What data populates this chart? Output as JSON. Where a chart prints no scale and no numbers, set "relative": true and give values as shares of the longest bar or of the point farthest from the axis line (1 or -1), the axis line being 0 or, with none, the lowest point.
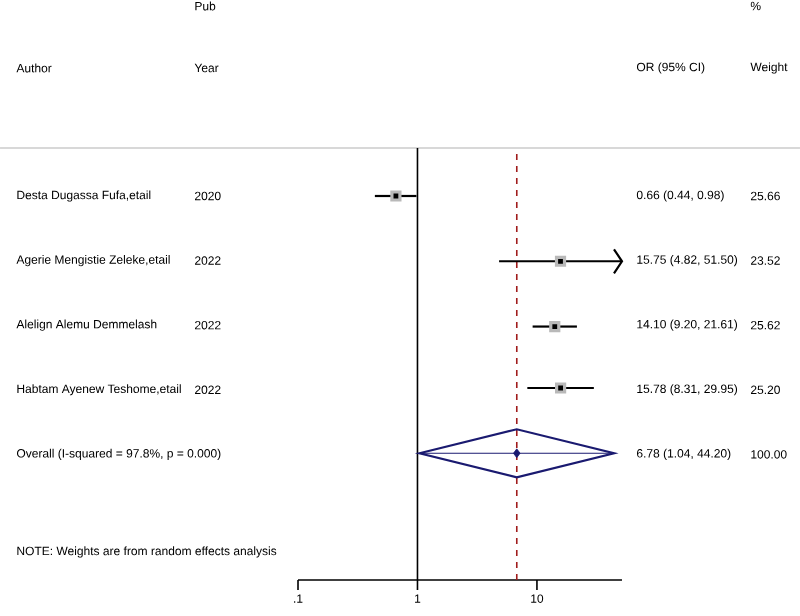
{
  "chart_data": {
    "type": "scatter",
    "log": "x",
    "relative": true,
    "tick_labels": "x",
    "xlim": [
      0.1,
      51.5
    ],
    "xticks": [
      {
        "value": 0.1,
        "label": ".1"
      },
      {
        "value": 1,
        "label": "1"
      },
      {
        "value": 10,
        "label": "10"
      }
    ],
    "series": [
      {
        "color": "#000000",
        "marker": "square",
        "x": [
          0.66,
          15.75,
          14.1,
          15.78
        ],
        "values": [
          1,
          0.83,
          0.66,
          0.5
        ],
        "xerrors": [
          [
            0.44,
            0.98
          ],
          [
            4.82,
            51.5
          ],
          [
            9.2,
            21.61
          ],
          [
            8.31,
            29.95
          ]
        ]
      },
      {
        "color": "#1a1a70",
        "marker": "diamond",
        "x": [
          6.78
        ],
        "values": [
          0.33
        ],
        "xerrors": [
          [
            1.04,
            44.2
          ]
        ]
      }
    ],
    "ref_lines": [
      {
        "axis": "x",
        "value": 1,
        "color": "#000000",
        "line_style": "solid"
      },
      {
        "axis": "x",
        "value": 6.78,
        "color": "#a01c1c",
        "line_style": "dashed"
      }
    ],
    "annotations": [
      "Pub",
      "Year",
      "Author",
      "OR (95% CI)",
      "%",
      "Weight",
      "Desta Dugassa Fufa,etail",
      "Agerie Mengistie Zeleke,etail",
      "Alelign Alemu Demmelash",
      "Habtam Ayenew Teshome,etail",
      "Overall  (I-squared = 97.8%, p = 0.000)",
      "2020",
      "2022",
      "2022",
      "2022",
      "0.66 (0.44, 0.98)",
      "15.75 (4.82, 51.50)",
      "14.10 (9.20, 21.61)",
      "15.78 (8.31, 29.95)",
      "6.78 (1.04, 44.20)",
      "25.66",
      "23.52",
      "25.62",
      "25.20",
      "100.00",
      "NOTE: Weights are from random effects analysis"
    ]
  }
}
